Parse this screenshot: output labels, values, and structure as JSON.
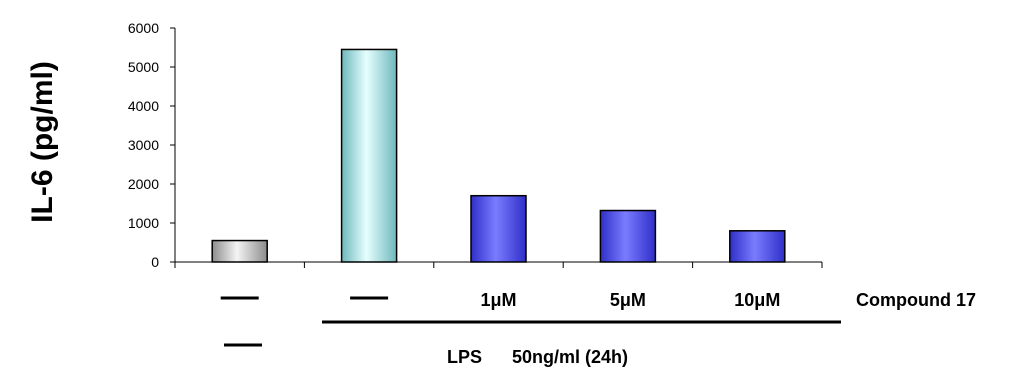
{
  "chart_data": {
    "type": "bar",
    "ylabel": "IL-6 (pg/ml)",
    "ylim": [
      0,
      6000
    ],
    "yticks": [
      "0",
      "1000",
      "2000",
      "3000",
      "4000",
      "5000",
      "6000"
    ],
    "categories": [
      "—",
      "—",
      "1μM",
      "5μM",
      "10μM"
    ],
    "values": [
      550,
      5450,
      1700,
      1320,
      800
    ],
    "bar_colors": [
      "#d4d4d4",
      "#b8f0f2",
      "#5a5cf0",
      "#5a5cf0",
      "#5a5cf0"
    ],
    "compound_row": {
      "labels": [
        "",
        "",
        "1μM",
        "5μM",
        "10μM"
      ],
      "label": "Compound 17"
    },
    "lps_row": {
      "label": "LPS",
      "dose": "50ng/ml (24h)"
    },
    "grid": false
  }
}
